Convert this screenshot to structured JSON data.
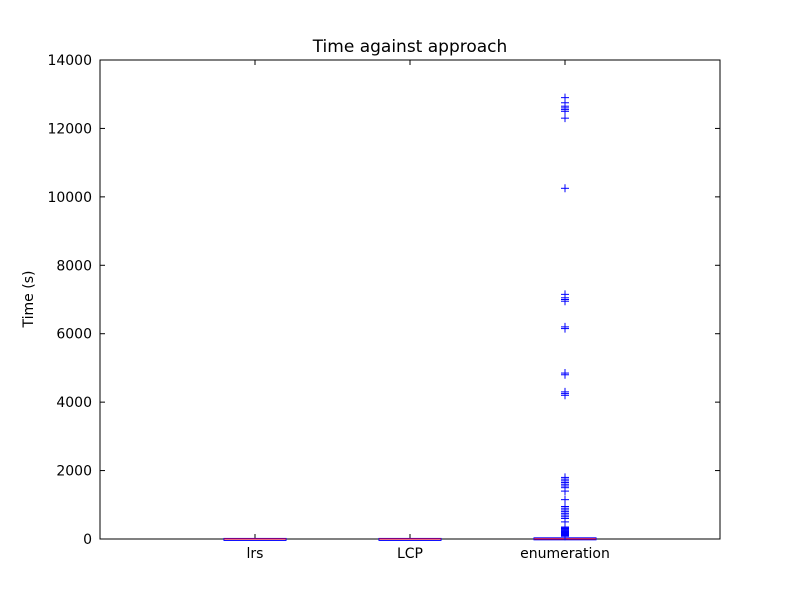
{
  "chart_data": {
    "type": "box",
    "title": "Time against approach",
    "xlabel": "",
    "ylabel": "Time (s)",
    "ylim": [
      0,
      14000
    ],
    "yticks": [
      0,
      2000,
      4000,
      6000,
      8000,
      10000,
      12000,
      14000
    ],
    "grid": false,
    "categories": [
      "lrs",
      "LCP",
      "enumeration"
    ],
    "colors": {
      "box": "#0000ff",
      "median": "#ff0000",
      "flier": "#0000ff",
      "axes": "#000000"
    },
    "series": [
      {
        "category": "lrs",
        "q1": 0,
        "median": 0,
        "q3": 2,
        "whisker_low": 0,
        "whisker_high": 5,
        "fliers": []
      },
      {
        "category": "LCP",
        "q1": 0,
        "median": 0,
        "q3": 2,
        "whisker_low": 0,
        "whisker_high": 5,
        "fliers": []
      },
      {
        "category": "enumeration",
        "q1": 0,
        "median": 5,
        "q3": 20,
        "whisker_low": 0,
        "whisker_high": 50,
        "fliers": [
          12900,
          12750,
          12650,
          12600,
          12550,
          12500,
          12300,
          10250,
          7150,
          7050,
          7000,
          6950,
          6200,
          6150,
          4850,
          4800,
          4300,
          4250,
          4200,
          1800,
          1750,
          1700,
          1650,
          1600,
          1550,
          1500,
          1400,
          1150,
          950,
          900,
          850,
          800,
          750,
          700,
          650,
          600,
          500,
          350,
          320,
          300,
          280,
          250,
          220,
          200,
          180,
          160,
          150,
          140,
          130,
          120,
          110,
          100,
          90,
          80
        ]
      }
    ]
  }
}
